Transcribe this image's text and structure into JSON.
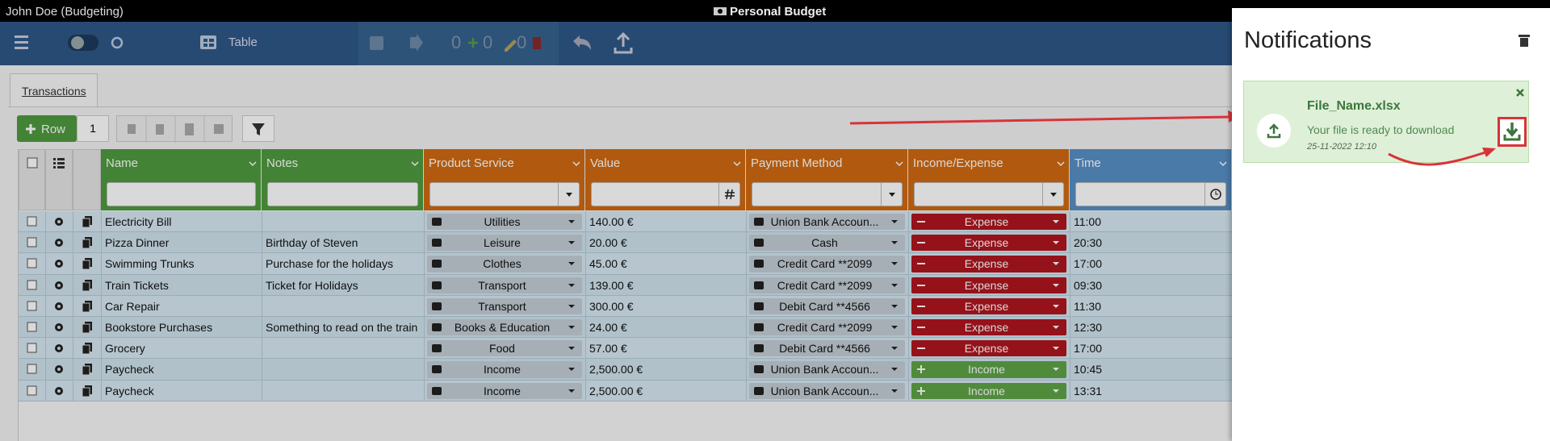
{
  "titlebar": {
    "user": "John Doe (Budgeting)",
    "app": "Personal Budget"
  },
  "toolbar": {
    "view": "Table",
    "counters": [
      "0",
      "0",
      "0"
    ]
  },
  "tab": "Transactions",
  "actions": {
    "add": "Row",
    "count": "1"
  },
  "table": {
    "columns": [
      "Name",
      "Notes",
      "Product Service",
      "Value",
      "Payment Method",
      "Income/Expense",
      "Time"
    ],
    "rows": [
      [
        "Electricity Bill",
        "",
        "Utilities",
        "140.00 €",
        "Union Bank Accoun...",
        "Expense",
        "11:00"
      ],
      [
        "Pizza Dinner",
        "Birthday of Steven",
        "Leisure",
        "20.00 €",
        "Cash",
        "Expense",
        "20:30"
      ],
      [
        "Swimming Trunks",
        "Purchase for the holidays",
        "Clothes",
        "45.00 €",
        "Credit Card **2099",
        "Expense",
        "17:00"
      ],
      [
        "Train Tickets",
        "Ticket for Holidays",
        "Transport",
        "139.00 €",
        "Credit Card **2099",
        "Expense",
        "09:30"
      ],
      [
        "Car Repair",
        "",
        "Transport",
        "300.00 €",
        "Debit Card **4566",
        "Expense",
        "11:30"
      ],
      [
        "Bookstore Purchases",
        "Something to read on the train",
        "Books & Education",
        "24.00 €",
        "Credit Card **2099",
        "Expense",
        "12:30"
      ],
      [
        "Grocery",
        "",
        "Food",
        "57.00 €",
        "Debit Card **4566",
        "Expense",
        "17:00"
      ],
      [
        "Paycheck",
        "",
        "Income",
        "2,500.00 €",
        "Union Bank Accoun...",
        "Income",
        "10:45"
      ],
      [
        "Paycheck",
        "",
        "Income",
        "2,500.00 €",
        "Union Bank Accoun...",
        "Income",
        "13:31"
      ]
    ]
  },
  "notifications": {
    "title": "Notifications",
    "card": {
      "file": "File_Name.xlsx",
      "message": "Your file is ready to download",
      "date": "25-11-2022 12:10"
    }
  }
}
